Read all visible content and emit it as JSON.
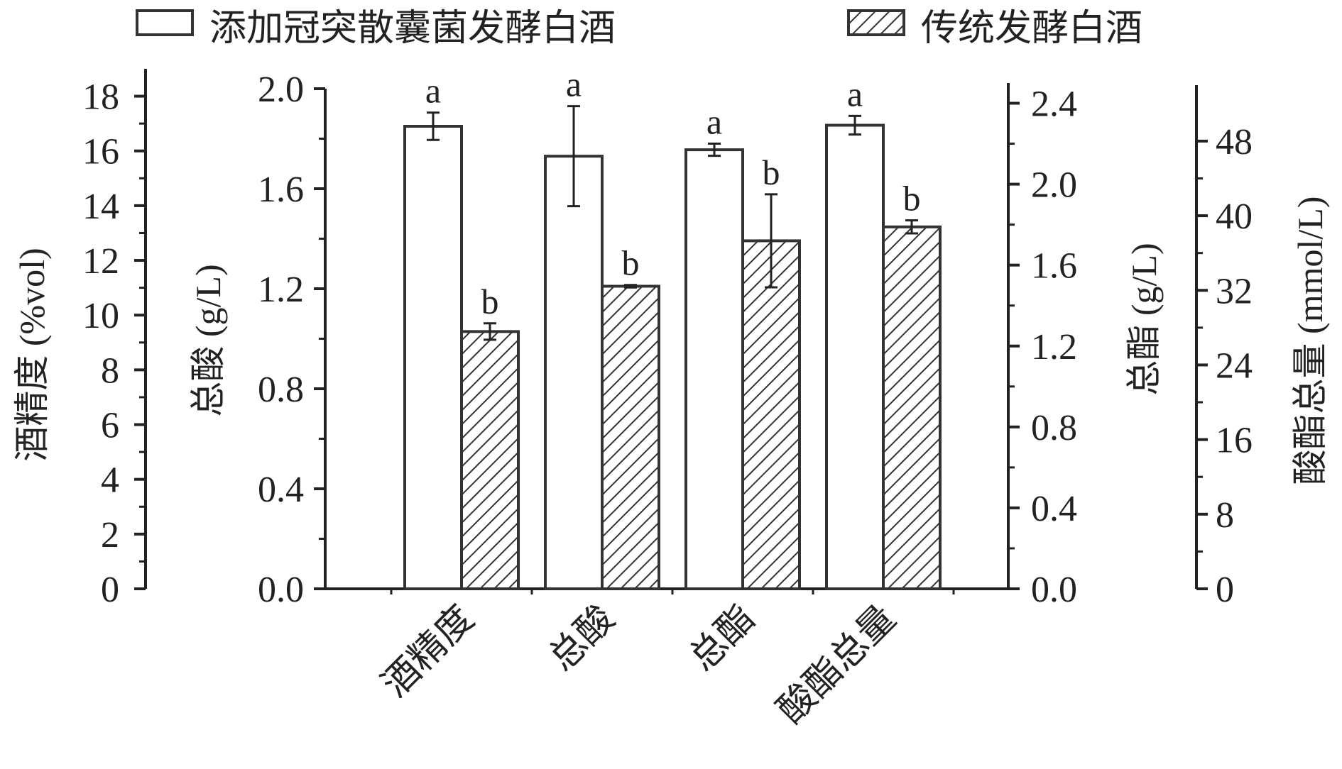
{
  "legend": {
    "items": [
      {
        "label": "添加冠突散囊菌发酵白酒",
        "pattern": "open"
      },
      {
        "label": "传统发酵白酒",
        "pattern": "hatched"
      }
    ]
  },
  "axes": {
    "alcohol": {
      "title": "酒精度 (%vol)",
      "range": [
        0,
        19
      ],
      "ticks": [
        0,
        2,
        4,
        6,
        8,
        10,
        12,
        14,
        16,
        18
      ]
    },
    "acid": {
      "title": "总酸 (g/L)",
      "range": [
        0,
        2.0
      ],
      "ticks": [
        "0.0",
        "0.4",
        "0.8",
        "1.2",
        "1.6",
        "2.0"
      ]
    },
    "ester": {
      "title": "总酯 (g/L)",
      "range": [
        0,
        2.5
      ],
      "ticks": [
        "0.0",
        "0.4",
        "0.8",
        "1.2",
        "1.6",
        "2.0",
        "2.4"
      ]
    },
    "acid_ester": {
      "title": "酸酯总量 (mmol/L)",
      "range": [
        0,
        54
      ],
      "ticks": [
        "0",
        "8",
        "16",
        "24",
        "32",
        "40",
        "48"
      ]
    }
  },
  "chart_data": {
    "type": "bar",
    "categories": [
      "酒精度",
      "总酸",
      "总酯",
      "酸酯总量"
    ],
    "category_axes": [
      "alcohol",
      "acid",
      "ester",
      "acid_ester"
    ],
    "series": [
      {
        "name": "添加冠突散囊菌发酵白酒",
        "values": [
          16.9,
          1.73,
          2.17,
          49.7
        ],
        "errors": [
          0.5,
          0.2,
          0.03,
          1.0
        ],
        "sig": [
          "a",
          "a",
          "a",
          "a"
        ]
      },
      {
        "name": "传统发酵白酒",
        "values": [
          9.4,
          1.21,
          1.72,
          38.8
        ],
        "errors": [
          0.3,
          0.005,
          0.23,
          0.7
        ],
        "sig": [
          "b",
          "b",
          "b",
          "b"
        ]
      }
    ],
    "xlabel": "",
    "grid": false,
    "legend_position": "top"
  }
}
